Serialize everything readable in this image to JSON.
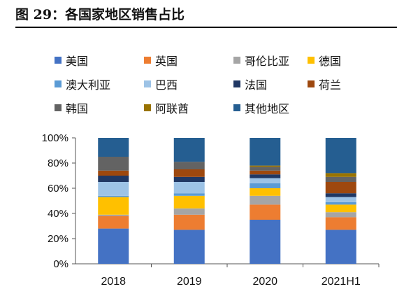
{
  "figure": {
    "title": "图 29：各国家地区销售占比"
  },
  "chart_data": {
    "type": "bar",
    "stacked": true,
    "categories": [
      "2018",
      "2019",
      "2020",
      "2021H1"
    ],
    "ylim": [
      0,
      100
    ],
    "yticks": [
      "0%",
      "20%",
      "40%",
      "60%",
      "80%",
      "100%"
    ],
    "legend_position": "top",
    "series": [
      {
        "name": "美国",
        "color": "#4472C4",
        "values": [
          28,
          27,
          35,
          27
        ]
      },
      {
        "name": "英国",
        "color": "#ED7D31",
        "values": [
          10,
          12,
          12,
          10
        ]
      },
      {
        "name": "哥伦比亚",
        "color": "#A5A5A5",
        "values": [
          1,
          5,
          7,
          4
        ]
      },
      {
        "name": "德国",
        "color": "#FFC000",
        "values": [
          14,
          10,
          6,
          6
        ]
      },
      {
        "name": "澳大利亚",
        "color": "#5B9BD5",
        "values": [
          1,
          2,
          4,
          2
        ]
      },
      {
        "name": "巴西",
        "color": "#9DC3E6",
        "values": [
          11,
          9,
          4,
          4
        ]
      },
      {
        "name": "法国",
        "color": "#203864",
        "values": [
          5,
          4,
          3,
          3
        ]
      },
      {
        "name": "荷兰",
        "color": "#9E480E",
        "values": [
          4,
          6,
          3,
          9
        ]
      },
      {
        "name": "韩国",
        "color": "#636363",
        "values": [
          11,
          6,
          3,
          4
        ]
      },
      {
        "name": "阿联酋",
        "color": "#997300",
        "values": [
          0,
          0,
          1,
          3
        ]
      },
      {
        "name": "其他地区",
        "color": "#255E91",
        "values": [
          15,
          19,
          22,
          28
        ]
      }
    ]
  }
}
